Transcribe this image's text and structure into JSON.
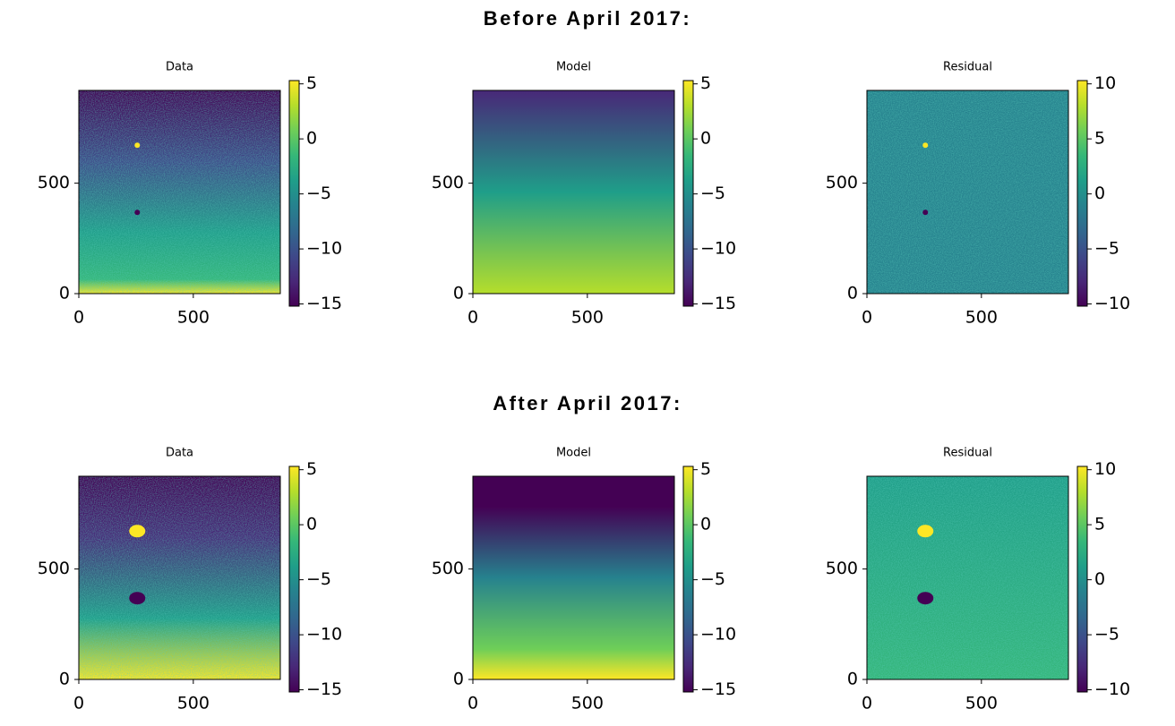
{
  "sections": [
    {
      "title": "Before April 2017:",
      "chart_data": [
        {
          "type": "image",
          "title": "Data",
          "colormap": "viridis",
          "xlim": [
            0,
            880
          ],
          "ylim": [
            0,
            920
          ],
          "xticks": [
            0,
            500
          ],
          "yticks": [
            0,
            500
          ],
          "clim": [
            -15.2,
            5.3
          ],
          "cticks": [
            5,
            0,
            {
              "value": -5,
              "label": "−5"
            },
            {
              "value": -10,
              "label": "−10"
            },
            {
              "value": -15,
              "label": "−15"
            }
          ]
        },
        {
          "type": "image",
          "title": "Model",
          "colormap": "viridis",
          "xlim": [
            0,
            880
          ],
          "ylim": [
            0,
            920
          ],
          "xticks": [
            0,
            500
          ],
          "yticks": [
            0,
            500
          ],
          "clim": [
            -15.2,
            5.3
          ],
          "cticks": [
            5,
            0,
            {
              "value": -5,
              "label": "−5"
            },
            {
              "value": -10,
              "label": "−10"
            },
            {
              "value": -15,
              "label": "−15"
            }
          ]
        },
        {
          "type": "image",
          "title": "Residual",
          "colormap": "viridis",
          "xlim": [
            0,
            880
          ],
          "ylim": [
            0,
            920
          ],
          "xticks": [
            0,
            500
          ],
          "yticks": [
            0,
            500
          ],
          "clim": [
            -10.2,
            10.3
          ],
          "cticks": [
            10,
            5,
            0,
            {
              "value": -5,
              "label": "−5"
            },
            {
              "value": -10,
              "label": "−10"
            }
          ]
        }
      ]
    },
    {
      "title": "After April 2017:",
      "chart_data": [
        {
          "type": "image",
          "title": "Data",
          "colormap": "viridis",
          "xlim": [
            0,
            880
          ],
          "ylim": [
            0,
            920
          ],
          "xticks": [
            0,
            500
          ],
          "yticks": [
            0,
            500
          ],
          "clim": [
            -15.2,
            5.3
          ],
          "cticks": [
            5,
            0,
            {
              "value": -5,
              "label": "−5"
            },
            {
              "value": -10,
              "label": "−10"
            },
            {
              "value": -15,
              "label": "−15"
            }
          ]
        },
        {
          "type": "image",
          "title": "Model",
          "colormap": "viridis",
          "xlim": [
            0,
            880
          ],
          "ylim": [
            0,
            920
          ],
          "xticks": [
            0,
            500
          ],
          "yticks": [
            0,
            500
          ],
          "clim": [
            -15.2,
            5.3
          ],
          "cticks": [
            5,
            0,
            {
              "value": -5,
              "label": "−5"
            },
            {
              "value": -10,
              "label": "−10"
            },
            {
              "value": -15,
              "label": "−15"
            }
          ]
        },
        {
          "type": "image",
          "title": "Residual",
          "colormap": "viridis",
          "xlim": [
            0,
            880
          ],
          "ylim": [
            0,
            920
          ],
          "xticks": [
            0,
            500
          ],
          "yticks": [
            0,
            500
          ],
          "clim": [
            -10.2,
            10.3
          ],
          "cticks": [
            10,
            5,
            0,
            {
              "value": -5,
              "label": "−5"
            },
            {
              "value": -10,
              "label": "−10"
            }
          ]
        }
      ]
    }
  ]
}
